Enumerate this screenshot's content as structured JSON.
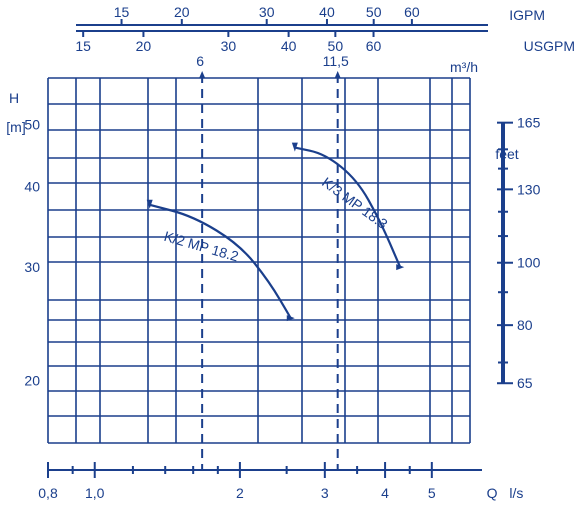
{
  "chart_data": {
    "type": "line",
    "title": "",
    "xlabel": "Q l/s",
    "ylabel": "H [m]",
    "x_scale": "log",
    "y_scale": "log",
    "xlim": [
      0.8,
      6.0
    ],
    "ylim": [
      16,
      59
    ],
    "x_ticks": [
      "0,8",
      "1,0",
      "2",
      "3",
      "4",
      "5"
    ],
    "y_ticks": [
      "20",
      "30",
      "40",
      "50"
    ],
    "grid": true,
    "top_axes": {
      "igpm": {
        "label": "IGPM",
        "ticks": [
          "15",
          "20",
          "30",
          "40",
          "50",
          "60"
        ]
      },
      "usgpm": {
        "label": "USGPM",
        "ticks": [
          "15",
          "20",
          "30",
          "40",
          "50",
          "60"
        ]
      },
      "m3h": {
        "label": "m³/h",
        "ticks": [
          "6",
          "11,5"
        ]
      }
    },
    "feet_axis": {
      "label": "feet",
      "ticks": [
        "165",
        "130",
        "100",
        "80",
        "65"
      ]
    },
    "reference_lines": [
      {
        "label": "6",
        "x": 1.67
      },
      {
        "label": "11,5",
        "x": 3.19
      }
    ],
    "series": [
      {
        "name": "K/2 MP 18.2",
        "x": [
          1.3,
          1.6,
          2.0,
          2.3,
          2.55
        ],
        "y": [
          37.5,
          36.0,
          32.5,
          28.5,
          25.0
        ]
      },
      {
        "name": "K/3 MP 18.3",
        "x": [
          2.6,
          3.0,
          3.5,
          3.9,
          4.3
        ],
        "y": [
          46.0,
          45.0,
          41.0,
          35.5,
          30.0
        ]
      }
    ]
  }
}
